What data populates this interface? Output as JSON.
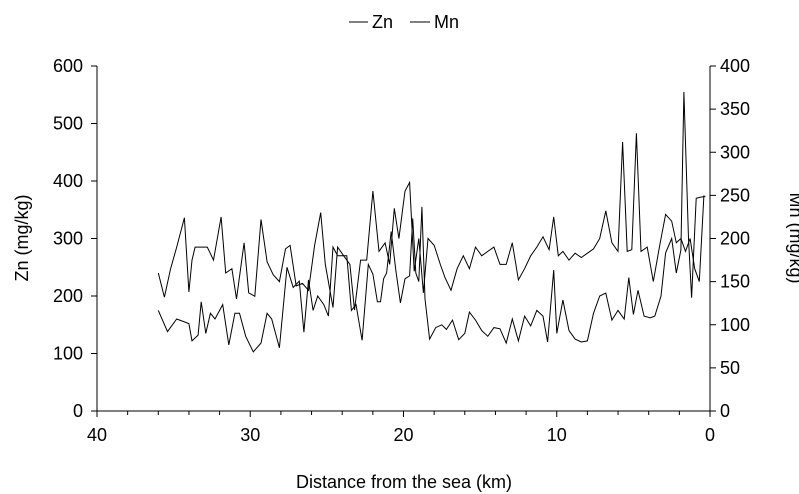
{
  "chart_data": {
    "type": "line",
    "xlabel": "Distance from the sea (km)",
    "ylabel_left": "Zn (mg/kg)",
    "ylabel_right": "Mn (mg/kg)",
    "xlim": [
      40,
      0
    ],
    "xticks": [
      40,
      30,
      20,
      10,
      0
    ],
    "ylim_left": [
      0,
      600
    ],
    "yticks_left": [
      0,
      100,
      200,
      300,
      400,
      500,
      600
    ],
    "ylim_right": [
      0,
      400
    ],
    "yticks_right": [
      0,
      50,
      100,
      150,
      200,
      250,
      300,
      350,
      400
    ],
    "grid": false,
    "legend_position": "top-center",
    "series": [
      {
        "name": "Zn",
        "axis": "left",
        "color": "#000000",
        "points": [
          [
            36.0,
            175
          ],
          [
            35.4,
            138
          ],
          [
            34.8,
            160
          ],
          [
            34.3,
            155
          ],
          [
            34.0,
            152
          ],
          [
            33.8,
            122
          ],
          [
            33.4,
            132
          ],
          [
            33.2,
            190
          ],
          [
            32.9,
            135
          ],
          [
            32.6,
            170
          ],
          [
            32.3,
            160
          ],
          [
            31.8,
            185
          ],
          [
            31.4,
            115
          ],
          [
            31.0,
            170
          ],
          [
            30.7,
            170
          ],
          [
            30.3,
            130
          ],
          [
            29.8,
            103
          ],
          [
            29.3,
            118
          ],
          [
            28.9,
            170
          ],
          [
            28.6,
            160
          ],
          [
            28.1,
            110
          ],
          [
            27.6,
            250
          ],
          [
            27.2,
            215
          ],
          [
            26.8,
            226
          ],
          [
            26.5,
            137
          ],
          [
            26.2,
            228
          ],
          [
            25.9,
            175
          ],
          [
            25.6,
            200
          ],
          [
            25.2,
            185
          ],
          [
            24.9,
            165
          ],
          [
            24.6,
            285
          ],
          [
            24.3,
            270
          ],
          [
            23.9,
            270
          ],
          [
            23.7,
            270
          ],
          [
            23.4,
            175
          ],
          [
            23.1,
            185
          ],
          [
            22.7,
            123
          ],
          [
            22.3,
            255
          ],
          [
            22.0,
            238
          ],
          [
            21.7,
            190
          ],
          [
            21.5,
            190
          ],
          [
            21.3,
            230
          ],
          [
            21.1,
            240
          ],
          [
            20.8,
            312
          ],
          [
            20.5,
            245
          ],
          [
            20.2,
            188
          ],
          [
            19.9,
            230
          ],
          [
            19.6,
            235
          ],
          [
            19.4,
            335
          ],
          [
            19.2,
            240
          ],
          [
            19.0,
            225
          ],
          [
            18.8,
            355
          ],
          [
            18.6,
            195
          ],
          [
            18.3,
            125
          ],
          [
            17.9,
            145
          ],
          [
            17.5,
            150
          ],
          [
            17.2,
            142
          ],
          [
            16.8,
            158
          ],
          [
            16.4,
            124
          ],
          [
            16.0,
            135
          ],
          [
            15.7,
            172
          ],
          [
            15.3,
            158
          ],
          [
            14.9,
            140
          ],
          [
            14.5,
            130
          ],
          [
            14.1,
            145
          ],
          [
            13.7,
            143
          ],
          [
            13.3,
            118
          ],
          [
            12.9,
            160
          ],
          [
            12.5,
            122
          ],
          [
            12.1,
            165
          ],
          [
            11.7,
            148
          ],
          [
            11.3,
            175
          ],
          [
            10.9,
            165
          ],
          [
            10.6,
            120
          ],
          [
            10.2,
            245
          ],
          [
            10.0,
            135
          ],
          [
            9.6,
            193
          ],
          [
            9.2,
            140
          ],
          [
            8.8,
            125
          ],
          [
            8.4,
            120
          ],
          [
            8.0,
            122
          ],
          [
            7.6,
            170
          ],
          [
            7.2,
            200
          ],
          [
            6.8,
            205
          ],
          [
            6.4,
            158
          ],
          [
            6.0,
            175
          ],
          [
            5.6,
            160
          ],
          [
            5.3,
            232
          ],
          [
            5.0,
            168
          ],
          [
            4.7,
            210
          ],
          [
            4.3,
            165
          ],
          [
            3.9,
            162
          ],
          [
            3.6,
            165
          ],
          [
            3.2,
            200
          ],
          [
            2.9,
            275
          ],
          [
            2.5,
            300
          ],
          [
            2.2,
            240
          ],
          [
            1.9,
            280
          ],
          [
            1.7,
            555
          ],
          [
            1.4,
            300
          ],
          [
            1.2,
            197
          ],
          [
            0.9,
            370
          ],
          [
            0.6,
            372
          ],
          [
            0.3,
            373
          ]
        ]
      },
      {
        "name": "Mn",
        "axis": "right",
        "color": "#000000",
        "points": [
          [
            36.0,
            160
          ],
          [
            35.6,
            132
          ],
          [
            35.2,
            165
          ],
          [
            34.8,
            190
          ],
          [
            34.3,
            224
          ],
          [
            34.0,
            138
          ],
          [
            33.8,
            175
          ],
          [
            33.6,
            190
          ],
          [
            33.2,
            190
          ],
          [
            32.8,
            190
          ],
          [
            32.4,
            175
          ],
          [
            31.9,
            225
          ],
          [
            31.6,
            160
          ],
          [
            31.2,
            165
          ],
          [
            30.9,
            130
          ],
          [
            30.4,
            195
          ],
          [
            30.1,
            137
          ],
          [
            29.7,
            133
          ],
          [
            29.3,
            222
          ],
          [
            28.9,
            173
          ],
          [
            28.5,
            158
          ],
          [
            28.1,
            150
          ],
          [
            27.7,
            188
          ],
          [
            27.4,
            192
          ],
          [
            27.0,
            145
          ],
          [
            26.6,
            148
          ],
          [
            26.2,
            140
          ],
          [
            25.8,
            192
          ],
          [
            25.4,
            230
          ],
          [
            25.1,
            170
          ],
          [
            24.6,
            120
          ],
          [
            24.3,
            190
          ],
          [
            23.9,
            180
          ],
          [
            23.5,
            170
          ],
          [
            23.2,
            117
          ],
          [
            22.8,
            175
          ],
          [
            22.4,
            175
          ],
          [
            22.0,
            255
          ],
          [
            21.6,
            185
          ],
          [
            21.2,
            195
          ],
          [
            20.9,
            170
          ],
          [
            20.6,
            235
          ],
          [
            20.3,
            200
          ],
          [
            19.9,
            255
          ],
          [
            19.6,
            265
          ],
          [
            19.3,
            162
          ],
          [
            19.0,
            200
          ],
          [
            18.7,
            137
          ],
          [
            18.4,
            200
          ],
          [
            18.0,
            192
          ],
          [
            17.6,
            170
          ],
          [
            17.3,
            155
          ],
          [
            16.9,
            140
          ],
          [
            16.5,
            165
          ],
          [
            16.1,
            180
          ],
          [
            15.7,
            165
          ],
          [
            15.3,
            190
          ],
          [
            14.9,
            180
          ],
          [
            14.5,
            185
          ],
          [
            14.1,
            190
          ],
          [
            13.7,
            170
          ],
          [
            13.3,
            170
          ],
          [
            12.9,
            195
          ],
          [
            12.5,
            152
          ],
          [
            12.1,
            165
          ],
          [
            11.7,
            180
          ],
          [
            11.3,
            190
          ],
          [
            10.9,
            202
          ],
          [
            10.5,
            187
          ],
          [
            10.2,
            225
          ],
          [
            9.9,
            180
          ],
          [
            9.6,
            185
          ],
          [
            9.2,
            175
          ],
          [
            8.8,
            183
          ],
          [
            8.4,
            178
          ],
          [
            8.0,
            183
          ],
          [
            7.6,
            188
          ],
          [
            7.2,
            200
          ],
          [
            6.8,
            232
          ],
          [
            6.4,
            195
          ],
          [
            6.0,
            185
          ],
          [
            5.7,
            312
          ],
          [
            5.4,
            185
          ],
          [
            5.1,
            187
          ],
          [
            4.8,
            322
          ],
          [
            4.5,
            185
          ],
          [
            4.1,
            190
          ],
          [
            3.7,
            150
          ],
          [
            3.3,
            190
          ],
          [
            2.9,
            228
          ],
          [
            2.5,
            220
          ],
          [
            2.2,
            195
          ],
          [
            1.9,
            200
          ],
          [
            1.6,
            185
          ],
          [
            1.3,
            200
          ],
          [
            1.0,
            165
          ],
          [
            0.7,
            150
          ],
          [
            0.4,
            250
          ]
        ]
      }
    ]
  }
}
